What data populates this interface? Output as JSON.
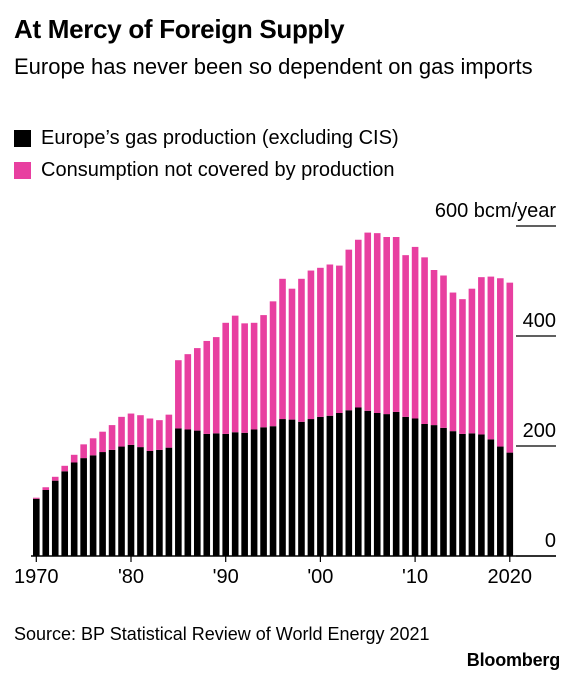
{
  "title": "At Mercy of Foreign Supply",
  "subtitle": "Europe has never been so dependent on gas imports",
  "source": "Source: BP Statistical Review of World Energy 2021",
  "brand": "Bloomberg",
  "colors": {
    "production": "#000000",
    "gap": "#e83fa0",
    "axis": "#000000"
  },
  "chart_data": {
    "type": "bar",
    "stacked": true,
    "x": [
      1970,
      1971,
      1972,
      1973,
      1974,
      1975,
      1976,
      1977,
      1978,
      1979,
      1980,
      1981,
      1982,
      1983,
      1984,
      1985,
      1986,
      1987,
      1988,
      1989,
      1990,
      1991,
      1992,
      1993,
      1994,
      1995,
      1996,
      1997,
      1998,
      1999,
      2000,
      2001,
      2002,
      2003,
      2004,
      2005,
      2006,
      2007,
      2008,
      2009,
      2010,
      2011,
      2012,
      2013,
      2014,
      2015,
      2016,
      2017,
      2018,
      2019,
      2020
    ],
    "series": [
      {
        "name": "Europe’s gas production (excluding CIS)",
        "color_key": "production",
        "values": [
          104,
          120,
          137,
          154,
          170,
          178,
          183,
          189,
          193,
          199,
          202,
          198,
          191,
          193,
          197,
          232,
          230,
          228,
          222,
          223,
          222,
          225,
          224,
          230,
          234,
          236,
          249,
          248,
          244,
          249,
          253,
          255,
          260,
          265,
          270,
          264,
          260,
          258,
          262,
          253,
          250,
          240,
          238,
          233,
          227,
          222,
          223,
          221,
          212,
          199,
          188
        ]
      },
      {
        "name": "Consumption not covered by production",
        "color_key": "gap",
        "values": [
          2,
          5,
          7,
          10,
          14,
          25,
          31,
          37,
          45,
          54,
          57,
          58,
          59,
          54,
          60,
          124,
          137,
          150,
          169,
          175,
          202,
          212,
          199,
          194,
          204,
          227,
          255,
          238,
          260,
          270,
          271,
          275,
          268,
          292,
          305,
          324,
          327,
          322,
          318,
          294,
          312,
          303,
          282,
          277,
          252,
          245,
          263,
          286,
          296,
          306,
          309
        ]
      }
    ],
    "ylim": [
      0,
      600
    ],
    "y_ticks": [
      0,
      200,
      400,
      600
    ],
    "y_tick_labels": [
      "0",
      "200",
      "400",
      "600 bcm/year"
    ],
    "x_ticks": [
      1970,
      1980,
      1990,
      2000,
      2010,
      2020
    ],
    "x_tick_labels": [
      "1970",
      "'80",
      "'90",
      "'00",
      "'10",
      "2020"
    ],
    "grid": false,
    "legend_placement": "top-left"
  }
}
